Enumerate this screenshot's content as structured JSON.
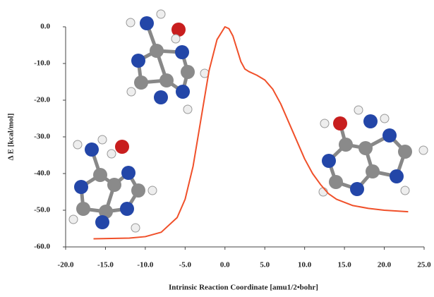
{
  "chart_data": {
    "type": "line",
    "xlabel": "Intrinsic Reaction Coordinate [amu1/2•bohr]",
    "ylabel": "Δ E  [kcal/mol]",
    "xlim": [
      -20,
      25
    ],
    "ylim": [
      -60,
      0
    ],
    "xticks": [
      {
        "value": -20,
        "label": "-20.0"
      },
      {
        "value": -15,
        "label": "-15.0"
      },
      {
        "value": -10,
        "label": "-10.0"
      },
      {
        "value": -5,
        "label": "-5.0"
      },
      {
        "value": 0,
        "label": "0.0"
      },
      {
        "value": 5,
        "label": "5.0"
      },
      {
        "value": 10,
        "label": "10.0"
      },
      {
        "value": 15,
        "label": "15.0"
      },
      {
        "value": 20,
        "label": "20.0"
      },
      {
        "value": 25,
        "label": "25.0"
      }
    ],
    "yticks": [
      {
        "value": 0,
        "label": "0.0"
      },
      {
        "value": -10,
        "label": "-10.0"
      },
      {
        "value": -20,
        "label": "-20.0"
      },
      {
        "value": -30,
        "label": "-30.0"
      },
      {
        "value": -40,
        "label": "-40.0"
      },
      {
        "value": -50,
        "label": "-50.0"
      },
      {
        "value": -60,
        "label": "-60.0"
      }
    ],
    "series": [
      {
        "color": "#f0502a",
        "x": [
          -16.5,
          -12,
          -10,
          -8,
          -6,
          -5,
          -4,
          -3,
          -2,
          -1,
          0,
          0.5,
          1,
          1.5,
          2,
          2.5,
          3,
          4,
          5,
          6,
          7,
          8,
          9,
          10,
          11,
          12,
          13,
          14,
          16,
          18,
          20,
          23
        ],
        "values": [
          -57.8,
          -57.6,
          -57.2,
          -56,
          -52,
          -47,
          -38,
          -25,
          -12,
          -3.5,
          0,
          -0.5,
          -2.5,
          -6,
          -9.5,
          -11.5,
          -12.2,
          -13.2,
          -14.5,
          -17,
          -21,
          -26,
          -31,
          -36,
          -40,
          -43,
          -45.5,
          -47,
          -48.7,
          -49.5,
          -50,
          -50.4
        ]
      }
    ]
  }
}
